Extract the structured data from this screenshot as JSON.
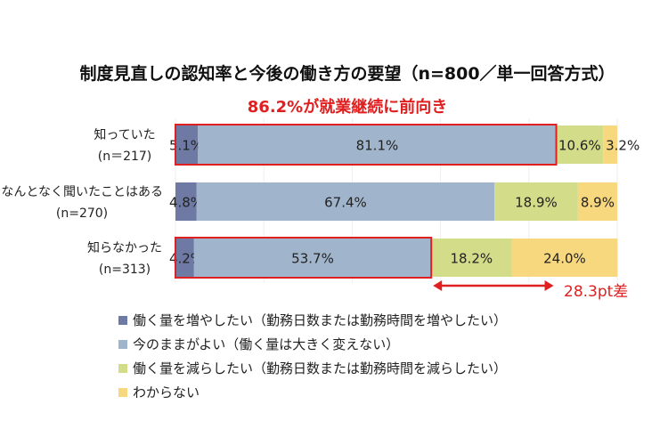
{
  "chart_data": {
    "type": "bar",
    "orientation": "horizontal-stacked-100",
    "title": "制度見直しの認知率と今後の働き方の要望（n=800／単一回答方式）",
    "annotation": "86.2%が就業継続に前向き",
    "difference_label": "28.3pt差",
    "categories": [
      [
        "知っていた",
        "(n＝217)"
      ],
      [
        "なんとなく聞いたことはある",
        "(n=270)"
      ],
      [
        "知らなかった",
        "(n=313)"
      ]
    ],
    "series": [
      {
        "name": "働く量を増やしたい（勤務日数または勤務時間を増やしたい）",
        "color": "#6E7AA3",
        "values": [
          5.1,
          4.8,
          4.2
        ]
      },
      {
        "name": "今のままがよい（働く量は大きく変えない）",
        "color": "#A0B5CC",
        "values": [
          81.1,
          67.4,
          53.7
        ]
      },
      {
        "name": "働く量を減らしたい（勤務日数または勤務時間を減らしたい）",
        "color": "#D3DC88",
        "values": [
          10.6,
          18.9,
          18.2
        ]
      },
      {
        "name": "わからない",
        "color": "#F8D87E",
        "values": [
          3.2,
          8.9,
          24.0
        ]
      }
    ],
    "highlight_color": "#E02020",
    "xlim": [
      0,
      100
    ],
    "grid": true
  }
}
